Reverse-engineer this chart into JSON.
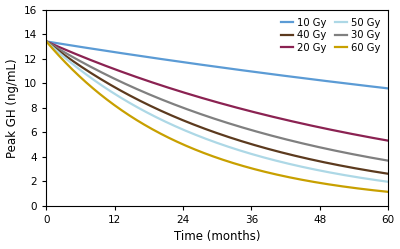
{
  "title": "",
  "xlabel": "Time (months)",
  "ylabel": "Peak GH (ng/mL)",
  "x_start": 0,
  "x_end": 60,
  "y_start": 0,
  "y_end": 16,
  "yticks": [
    0,
    2,
    4,
    6,
    8,
    10,
    12,
    14,
    16
  ],
  "xticks": [
    0,
    12,
    24,
    36,
    48,
    60
  ],
  "initial_value": 13.4,
  "series": [
    {
      "label": "10 Gy",
      "color": "#5b9bd5",
      "decay": 0.0056
    },
    {
      "label": "20 Gy",
      "color": "#8B2252",
      "decay": 0.0154
    },
    {
      "label": "30 Gy",
      "color": "#808080",
      "decay": 0.0215
    },
    {
      "label": "40 Gy",
      "color": "#5C3A1E",
      "decay": 0.0272
    },
    {
      "label": "50 Gy",
      "color": "#add8e6",
      "decay": 0.032
    },
    {
      "label": "60 Gy",
      "color": "#C8A000",
      "decay": 0.041
    }
  ],
  "background_color": "#ffffff",
  "legend_fontsize": 7.2,
  "axis_fontsize": 8.5,
  "tick_fontsize": 7.5,
  "linewidth": 1.6
}
